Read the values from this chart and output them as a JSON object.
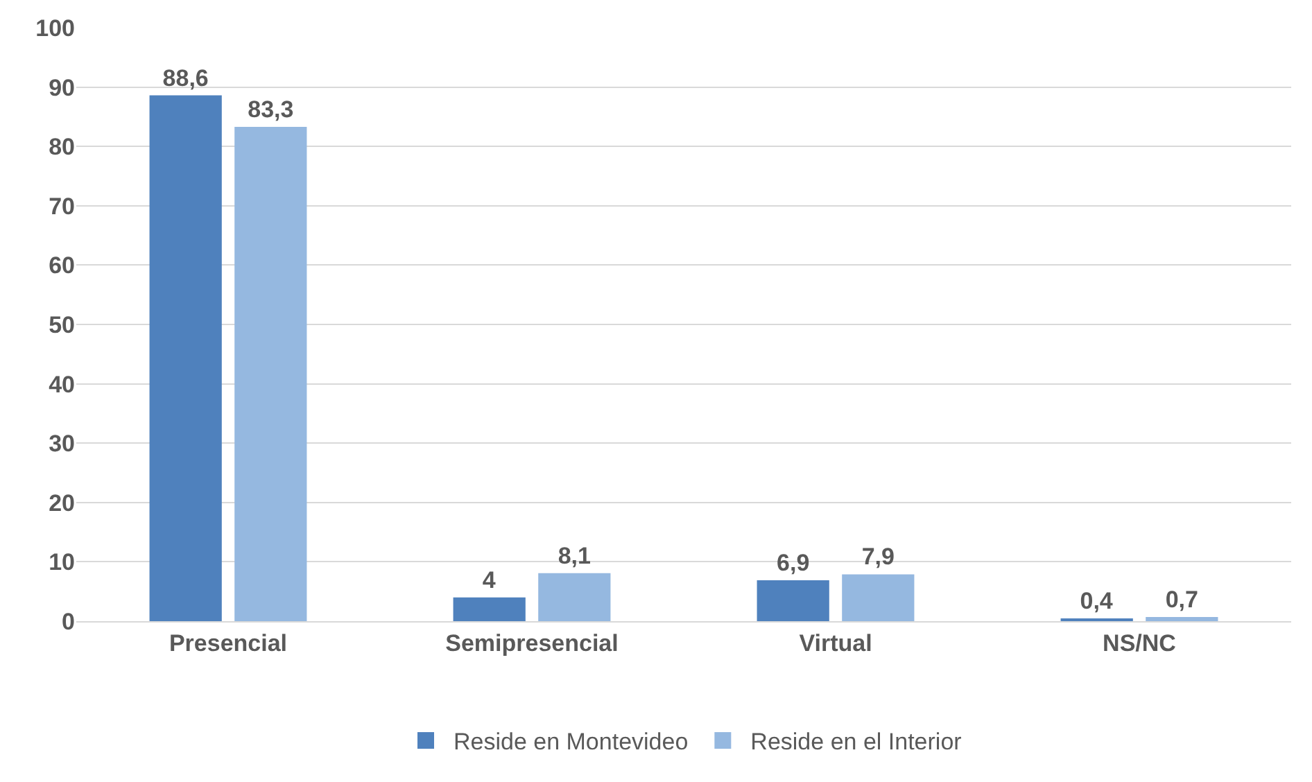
{
  "chart_data": {
    "type": "bar",
    "categories": [
      "Presencial",
      "Semipresencial",
      "Virtual",
      "NS/NC"
    ],
    "series": [
      {
        "name": "Reside en Montevideo",
        "color": "#4f81bd",
        "values": [
          88.6,
          4,
          6.9,
          0.4
        ],
        "value_labels": [
          "88,6",
          "4",
          "6,9",
          "0,4"
        ]
      },
      {
        "name": "Reside en el Interior",
        "color": "#95b8e0",
        "values": [
          83.3,
          8.1,
          7.9,
          0.7
        ],
        "value_labels": [
          "83,3",
          "8,1",
          "7,9",
          "0,7"
        ]
      }
    ],
    "ylim": [
      0,
      100
    ],
    "yticks": [
      0,
      10,
      20,
      30,
      40,
      50,
      60,
      70,
      80,
      90,
      100
    ],
    "grid": "y",
    "legend": "bottom"
  }
}
